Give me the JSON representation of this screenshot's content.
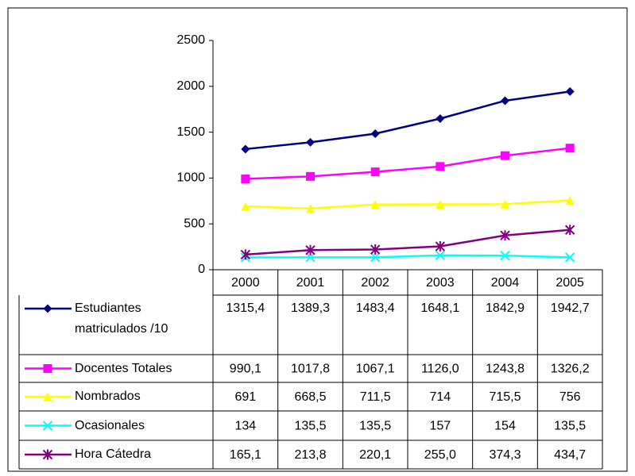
{
  "chart_data": {
    "type": "line",
    "categories": [
      "2000",
      "2001",
      "2002",
      "2003",
      "2004",
      "2005"
    ],
    "ylim": [
      0,
      2500
    ],
    "yticks": [
      0,
      500,
      1000,
      1500,
      2000,
      2500
    ],
    "grid": false,
    "series": [
      {
        "name": "Estudiantes matriculados /10",
        "color": "#000080",
        "marker": "diamond",
        "values": [
          1315.4,
          1389.3,
          1483.4,
          1648.1,
          1842.9,
          1942.7
        ],
        "value_labels": [
          "1315,4",
          "1389,3",
          "1483,4",
          "1648,1",
          "1842,9",
          "1942,7"
        ]
      },
      {
        "name": "Docentes Totales",
        "color": "#ff00ff",
        "marker": "square",
        "values": [
          990.1,
          1017.8,
          1067.1,
          1126.0,
          1243.8,
          1326.2
        ],
        "value_labels": [
          "990,1",
          "1017,8",
          "1067,1",
          "1126,0",
          "1243,8",
          "1326,2"
        ]
      },
      {
        "name": "Nombrados",
        "color": "#ffff00",
        "marker": "triangle",
        "values": [
          691,
          668.5,
          711.5,
          714,
          715.5,
          756
        ],
        "value_labels": [
          "691",
          "668,5",
          "711,5",
          "714",
          "715,5",
          "756"
        ]
      },
      {
        "name": "Ocasionales",
        "color": "#00ffff",
        "marker": "x",
        "values": [
          134,
          135.5,
          135.5,
          157,
          154,
          135.5
        ],
        "value_labels": [
          "134",
          "135,5",
          "135,5",
          "157",
          "154",
          "135,5"
        ]
      },
      {
        "name": "Hora Cátedra",
        "color": "#800080",
        "marker": "star",
        "values": [
          165.1,
          213.8,
          220.1,
          255.0,
          374.3,
          434.7
        ],
        "value_labels": [
          "165,1",
          "213,8",
          "220,1",
          "255,0",
          "374,3",
          "434,7"
        ]
      }
    ]
  }
}
